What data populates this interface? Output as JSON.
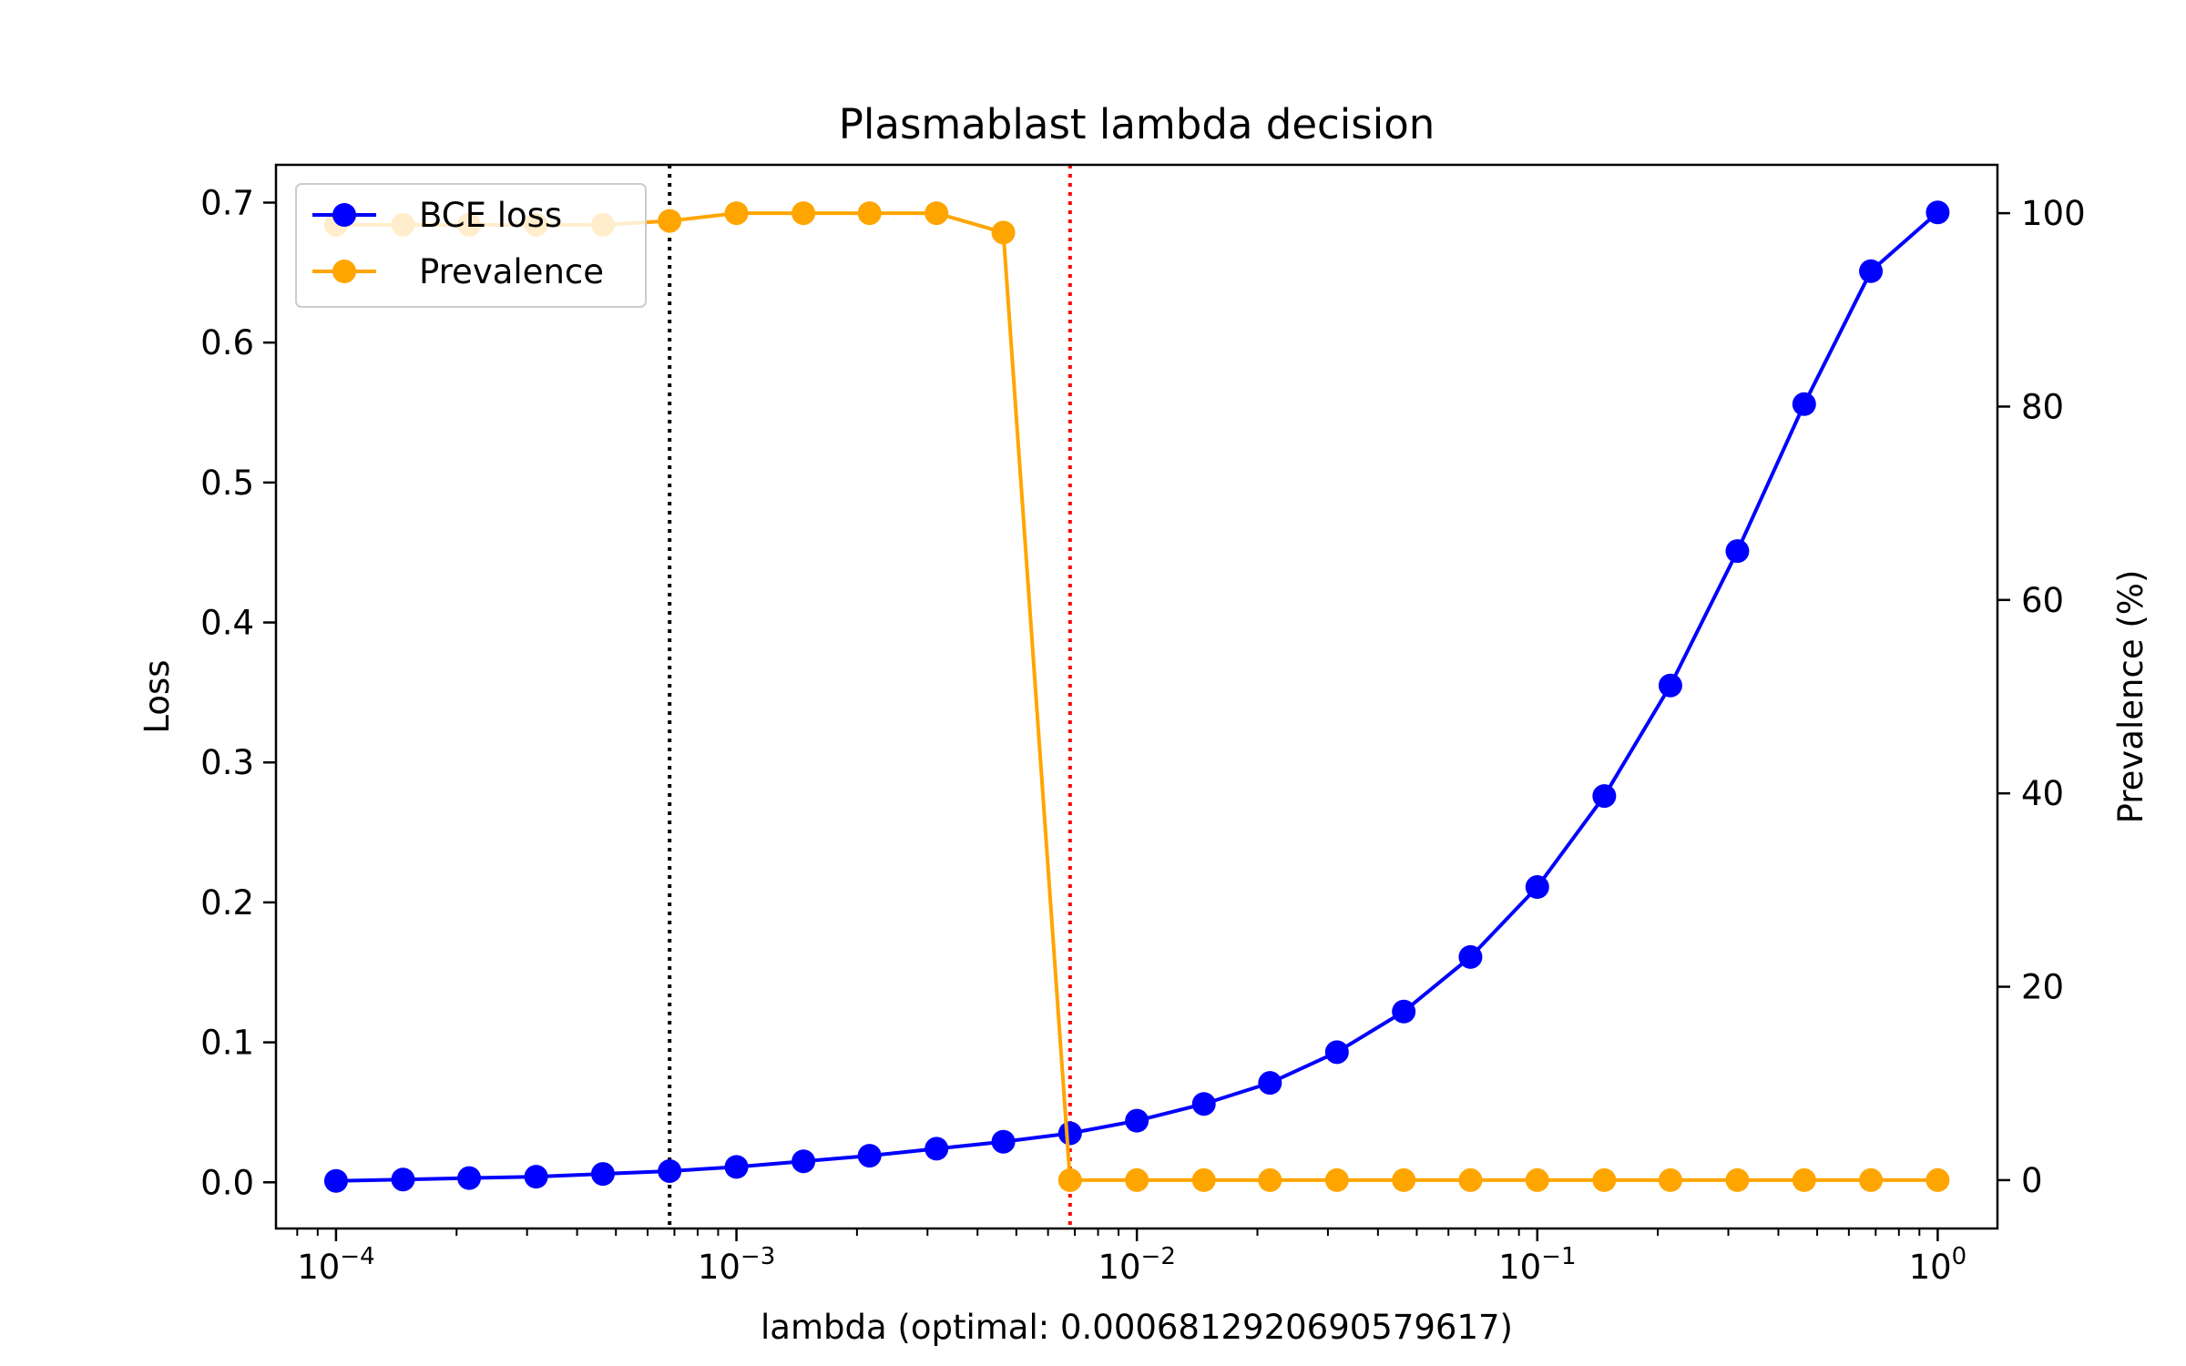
{
  "chart_data": {
    "type": "line",
    "title": "Plasmablast lambda decision",
    "xlabel": "lambda (optimal: 0.0006812920690579617)",
    "ylabel_left": "Loss",
    "ylabel_right": "Prevalence (%)",
    "x_scale": "log",
    "xlim": [
      7.08e-05,
      1.41
    ],
    "ylim_left": [
      -0.033,
      0.727
    ],
    "ylim_right": [
      -5,
      105
    ],
    "x_ticks": [
      {
        "value": 0.0001,
        "base": "10",
        "exp": "−4"
      },
      {
        "value": 0.001,
        "base": "10",
        "exp": "−3"
      },
      {
        "value": 0.01,
        "base": "10",
        "exp": "−2"
      },
      {
        "value": 0.1,
        "base": "10",
        "exp": "−1"
      },
      {
        "value": 1,
        "base": "10",
        "exp": "0"
      }
    ],
    "y_left_ticks": [
      "0.0",
      "0.1",
      "0.2",
      "0.3",
      "0.4",
      "0.5",
      "0.6",
      "0.7"
    ],
    "y_right_ticks": [
      "0",
      "20",
      "40",
      "60",
      "80",
      "100"
    ],
    "x": [
      0.0001,
      0.000147,
      0.000215,
      0.000316,
      0.000464,
      0.000681,
      0.001,
      0.00147,
      0.00215,
      0.00316,
      0.00464,
      0.00681,
      0.01,
      0.0147,
      0.0215,
      0.0316,
      0.0464,
      0.0681,
      0.1,
      0.147,
      0.215,
      0.316,
      0.464,
      0.681,
      1.0
    ],
    "series": [
      {
        "name": "BCE loss",
        "axis": "left",
        "color": "#0000ff",
        "values": [
          0.001,
          0.002,
          0.003,
          0.004,
          0.006,
          0.008,
          0.011,
          0.015,
          0.019,
          0.024,
          0.029,
          0.035,
          0.044,
          0.056,
          0.071,
          0.093,
          0.122,
          0.161,
          0.211,
          0.276,
          0.355,
          0.451,
          0.556,
          0.651,
          0.693
        ]
      },
      {
        "name": "Prevalence",
        "axis": "right",
        "color": "#ffa500",
        "values": [
          98.8,
          98.8,
          98.8,
          98.8,
          98.8,
          99.2,
          100,
          100,
          100,
          100,
          98,
          0,
          0,
          0,
          0,
          0,
          0,
          0,
          0,
          0,
          0,
          0,
          0,
          0,
          0
        ]
      }
    ],
    "vlines": [
      {
        "x": 0.000681,
        "color": "#000000",
        "style": "dotted"
      },
      {
        "x": 0.00681,
        "color": "#ff0000",
        "style": "dotted"
      }
    ],
    "legend_position": "top-left",
    "grid": false
  }
}
